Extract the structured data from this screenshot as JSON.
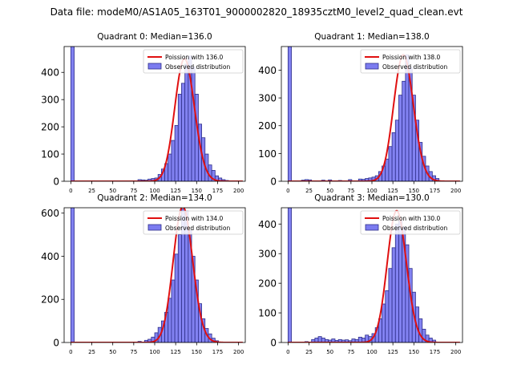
{
  "suptitle": "Data file: modeM0/AS1A05_163T01_9000002820_18935cztM0_level2_quad_clean.evt",
  "colors": {
    "bar_fill": "#7b7bf0",
    "bar_edge": "#2e2e8a",
    "curve": "#e01010"
  },
  "legend": {
    "observed_label": "Observed distribution"
  },
  "chart_data": [
    {
      "type": "bar",
      "title": "Quadrant 0: Median=136.0",
      "legend_label": "Poission with 136.0",
      "xlim": [
        -8,
        208
      ],
      "ylim": [
        0,
        495
      ],
      "xticks": [
        0,
        25,
        50,
        75,
        100,
        125,
        150,
        175,
        200
      ],
      "yticks": [
        0,
        100,
        200,
        300,
        400
      ],
      "bin_width": 4,
      "mean": 136,
      "amplitude": 450,
      "bins": [
        0,
        80,
        84,
        88,
        92,
        96,
        100,
        104,
        108,
        112,
        116,
        120,
        124,
        128,
        132,
        136,
        140,
        144,
        148,
        152,
        156,
        160,
        164,
        168,
        172,
        176,
        180,
        184
      ],
      "values": [
        495,
        6,
        5,
        4,
        8,
        10,
        12,
        25,
        45,
        65,
        100,
        150,
        205,
        320,
        360,
        430,
        460,
        420,
        320,
        210,
        160,
        100,
        60,
        40,
        20,
        12,
        6,
        3
      ]
    },
    {
      "type": "bar",
      "title": "Quadrant 1: Median=138.0",
      "legend_label": "Poission with 138.0",
      "xlim": [
        -8,
        208
      ],
      "ylim": [
        0,
        485
      ],
      "xticks": [
        0,
        25,
        50,
        75,
        100,
        125,
        150,
        175,
        200
      ],
      "yticks": [
        0,
        100,
        200,
        300,
        400
      ],
      "bin_width": 4,
      "mean": 138,
      "amplitude": 455,
      "bins": [
        0,
        16,
        20,
        24,
        40,
        48,
        60,
        72,
        84,
        88,
        92,
        96,
        100,
        104,
        108,
        112,
        116,
        120,
        124,
        128,
        132,
        136,
        140,
        144,
        148,
        152,
        156,
        160,
        164,
        168,
        172,
        176
      ],
      "values": [
        485,
        4,
        6,
        5,
        4,
        5,
        3,
        6,
        8,
        7,
        10,
        12,
        15,
        20,
        35,
        55,
        80,
        125,
        175,
        220,
        310,
        360,
        455,
        410,
        310,
        220,
        140,
        90,
        55,
        35,
        20,
        10
      ]
    },
    {
      "type": "bar",
      "title": "Quadrant 2: Median=134.0",
      "legend_label": "Poission with 134.0",
      "xlim": [
        -8,
        208
      ],
      "ylim": [
        0,
        625
      ],
      "xticks": [
        0,
        25,
        50,
        75,
        100,
        125,
        150,
        175,
        200
      ],
      "yticks": [
        0,
        200,
        400,
        600
      ],
      "bin_width": 4,
      "mean": 134,
      "amplitude": 630,
      "bins": [
        0,
        80,
        88,
        92,
        96,
        100,
        104,
        108,
        112,
        116,
        120,
        124,
        128,
        132,
        136,
        140,
        144,
        148,
        152,
        156,
        160,
        164,
        168,
        172
      ],
      "values": [
        625,
        5,
        10,
        15,
        25,
        45,
        70,
        100,
        140,
        205,
        290,
        410,
        500,
        620,
        610,
        520,
        400,
        290,
        180,
        110,
        65,
        40,
        20,
        8
      ]
    },
    {
      "type": "bar",
      "title": "Quadrant 3: Median=130.0",
      "legend_label": "Poission with 130.0",
      "xlim": [
        -8,
        208
      ],
      "ylim": [
        0,
        455
      ],
      "xticks": [
        0,
        25,
        50,
        75,
        100,
        125,
        150,
        175,
        200
      ],
      "yticks": [
        0,
        100,
        200,
        300,
        400
      ],
      "bin_width": 4,
      "mean": 130,
      "amplitude": 445,
      "bins": [
        0,
        20,
        28,
        32,
        36,
        40,
        44,
        48,
        52,
        56,
        60,
        64,
        68,
        72,
        76,
        80,
        84,
        88,
        92,
        96,
        100,
        104,
        108,
        112,
        116,
        120,
        124,
        128,
        132,
        136,
        140,
        144,
        148,
        152,
        156,
        160,
        164,
        168,
        172
      ],
      "values": [
        455,
        3,
        10,
        15,
        20,
        15,
        10,
        8,
        12,
        7,
        10,
        8,
        9,
        6,
        12,
        10,
        18,
        15,
        25,
        20,
        30,
        50,
        80,
        130,
        175,
        250,
        320,
        400,
        410,
        390,
        330,
        250,
        170,
        120,
        80,
        45,
        25,
        15,
        8
      ]
    }
  ]
}
